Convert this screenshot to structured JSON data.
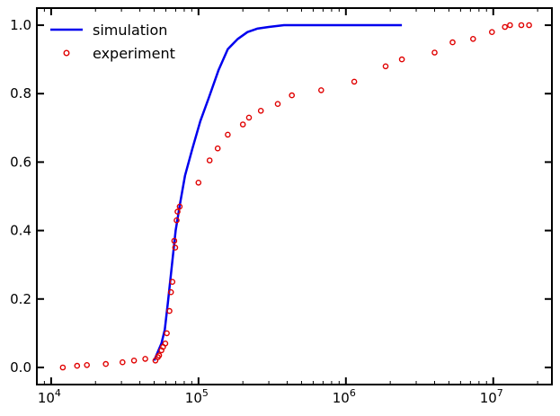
{
  "chart_data": {
    "type": "line",
    "title": "",
    "xlabel": "",
    "ylabel": "",
    "xscale": "log",
    "xlim": [
      8000,
      25000000
    ],
    "ylim": [
      -0.05,
      1.05
    ],
    "grid": false,
    "legend_position": "top-left",
    "x_tick_labels": [
      {
        "base": "10",
        "exp": "4",
        "value": 10000
      },
      {
        "base": "10",
        "exp": "5",
        "value": 100000
      },
      {
        "base": "10",
        "exp": "6",
        "value": 1000000
      },
      {
        "base": "10",
        "exp": "7",
        "value": 10000000
      }
    ],
    "y_tick_labels": [
      "0.0",
      "0.2",
      "0.4",
      "0.6",
      "0.8",
      "1.0"
    ],
    "y_ticks": [
      0.0,
      0.2,
      0.4,
      0.6,
      0.8,
      1.0
    ],
    "series": [
      {
        "name": "simulation",
        "style": "line",
        "color": "#0000ee",
        "x": [
          50000,
          56000,
          59000,
          62000,
          66000,
          70000,
          75000,
          81000,
          91000,
          103000,
          118000,
          137000,
          158000,
          185000,
          215000,
          250000,
          300000,
          380000,
          500000,
          800000,
          1500000,
          2400000
        ],
        "y": [
          0.02,
          0.07,
          0.11,
          0.19,
          0.3,
          0.4,
          0.48,
          0.56,
          0.64,
          0.72,
          0.79,
          0.87,
          0.93,
          0.96,
          0.98,
          0.99,
          0.995,
          1.0,
          1.0,
          1.0,
          1.0,
          1.0
        ]
      },
      {
        "name": "experiment",
        "style": "marker",
        "color": "#e00000",
        "x": [
          12000,
          15000,
          17500,
          23500,
          30500,
          36500,
          43500,
          51000,
          53000,
          54000,
          56000,
          57500,
          59500,
          61000,
          63500,
          65000,
          66500,
          68500,
          69500,
          71000,
          72000,
          74500,
          100000,
          119000,
          135000,
          158000,
          200000,
          220000,
          265000,
          345000,
          430000,
          680000,
          1140000,
          1860000,
          2400000,
          4000000,
          5300000,
          7300000,
          9800000,
          12000000,
          13000000,
          15500000,
          17500000
        ],
        "y": [
          0.0,
          0.005,
          0.007,
          0.01,
          0.015,
          0.02,
          0.025,
          0.02,
          0.03,
          0.035,
          0.05,
          0.06,
          0.07,
          0.1,
          0.165,
          0.22,
          0.25,
          0.37,
          0.35,
          0.43,
          0.455,
          0.47,
          0.54,
          0.605,
          0.64,
          0.68,
          0.71,
          0.73,
          0.75,
          0.77,
          0.795,
          0.81,
          0.835,
          0.88,
          0.9,
          0.92,
          0.95,
          0.96,
          0.98,
          0.995,
          1.0,
          1.0,
          1.0
        ]
      }
    ]
  },
  "colors": {
    "axis": "#000000",
    "simulation": "#0000ee",
    "experiment": "#e00000"
  }
}
